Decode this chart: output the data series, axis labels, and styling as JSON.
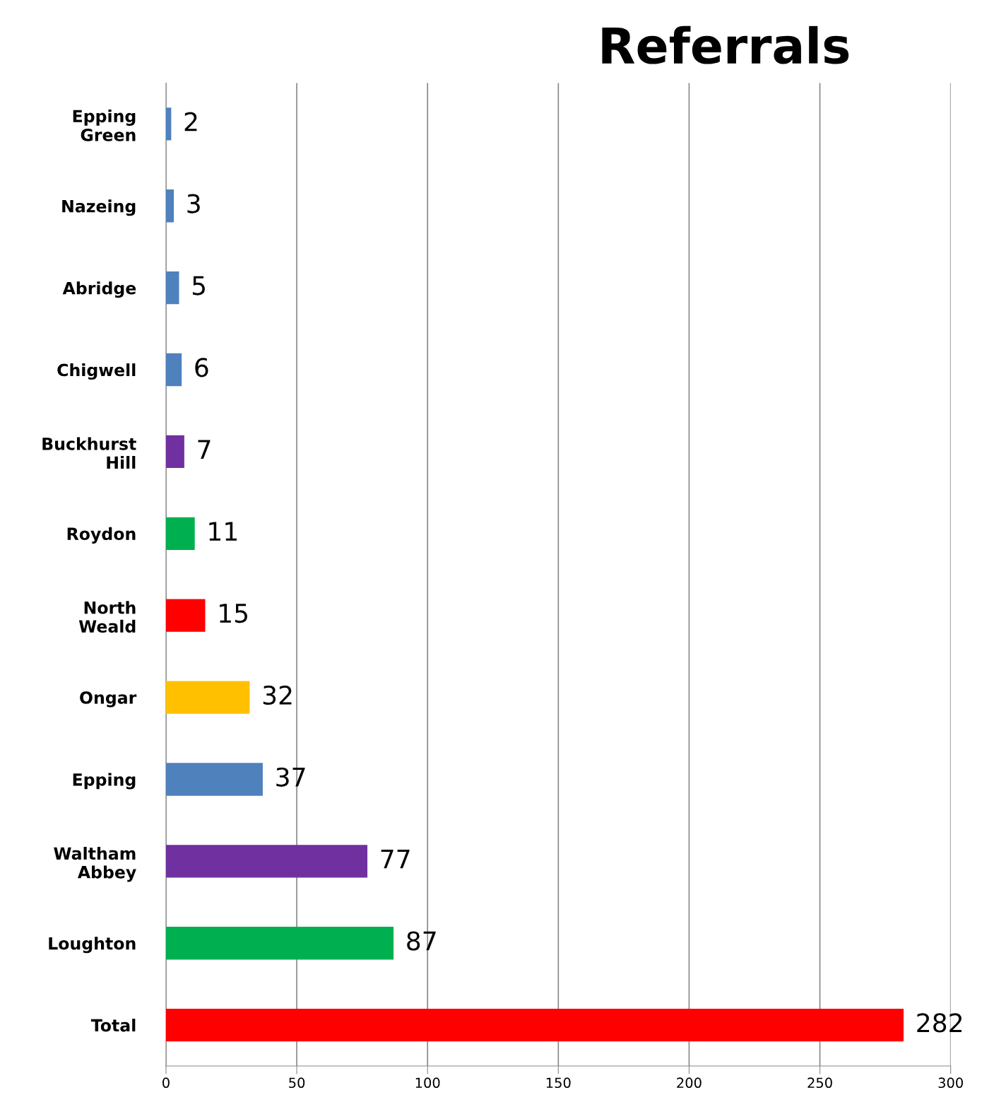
{
  "chart_data": {
    "type": "bar",
    "orientation": "horizontal",
    "title": "Referrals",
    "categories": [
      "Epping Green",
      "Nazeing",
      "Abridge",
      "Chigwell",
      "Buckhurst Hill",
      "Roydon",
      "North Weald",
      "Ongar",
      "Epping",
      "Waltham Abbey",
      "Loughton",
      "Total"
    ],
    "values": [
      2,
      3,
      5,
      6,
      7,
      11,
      15,
      32,
      37,
      77,
      87,
      282
    ],
    "colors": [
      "#4f81bd",
      "#4f81bd",
      "#4f81bd",
      "#4f81bd",
      "#7030a0",
      "#00b050",
      "#ff0000",
      "#ffc000",
      "#4f81bd",
      "#7030a0",
      "#00b050",
      "#ff0000"
    ],
    "xlim": [
      0,
      300
    ],
    "xticks": [
      0,
      50,
      100,
      150,
      200,
      250,
      300
    ],
    "grid": "x",
    "data_labels": true
  }
}
